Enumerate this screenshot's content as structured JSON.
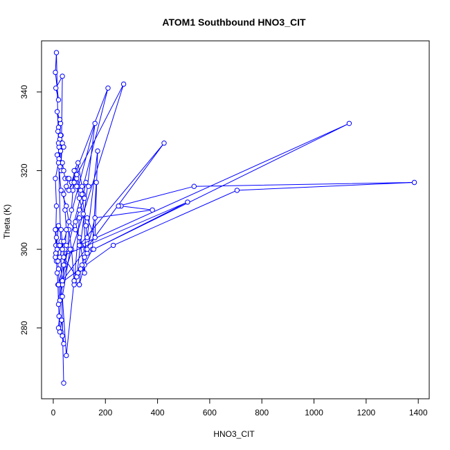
{
  "chart_data": {
    "type": "line",
    "title": "ATOM1 Southbound HNO3_CIT",
    "xlabel": "HNO3_CIT",
    "ylabel": "Theta (K)",
    "xlim": [
      -45,
      1442
    ],
    "ylim": [
      262,
      353
    ],
    "xticks": [
      0,
      200,
      400,
      600,
      800,
      1000,
      1200,
      1400
    ],
    "yticks": [
      280,
      300,
      320,
      340
    ],
    "grid": false,
    "line_color": "#0000ff",
    "marker": "open-circle",
    "series": [
      {
        "points": [
          [
            40,
            266
          ],
          [
            12,
            350
          ],
          [
            8,
            345
          ],
          [
            20,
            338
          ],
          [
            10,
            341
          ],
          [
            35,
            344
          ],
          [
            30,
            320
          ],
          [
            22,
            326
          ],
          [
            28,
            332
          ],
          [
            15,
            335
          ],
          [
            25,
            328
          ],
          [
            20,
            331
          ],
          [
            30,
            329
          ],
          [
            18,
            330
          ],
          [
            25,
            333
          ],
          [
            20,
            327
          ],
          [
            28,
            325
          ],
          [
            15,
            324
          ],
          [
            22,
            323
          ],
          [
            30,
            322
          ],
          [
            35,
            327
          ],
          [
            40,
            326
          ],
          [
            28,
            329
          ],
          [
            26,
            321
          ],
          [
            35,
            322
          ],
          [
            40,
            320
          ],
          [
            45,
            318
          ],
          [
            55,
            318
          ],
          [
            70,
            317
          ],
          [
            85,
            320
          ],
          [
            90,
            318
          ],
          [
            95,
            316
          ],
          [
            105,
            315
          ],
          [
            115,
            314
          ],
          [
            125,
            317
          ],
          [
            135,
            316
          ],
          [
            165,
            317
          ],
          [
            150,
            300
          ],
          [
            120,
            296
          ],
          [
            100,
            291
          ],
          [
            80,
            292
          ],
          [
            70,
            300
          ],
          [
            60,
            305
          ],
          [
            55,
            300
          ],
          [
            45,
            296
          ],
          [
            30,
            291
          ],
          [
            25,
            287
          ],
          [
            20,
            295
          ],
          [
            15,
            298
          ],
          [
            10,
            305
          ],
          [
            12,
            311
          ],
          [
            8,
            318
          ],
          [
            20,
            322
          ],
          [
            30,
            315
          ],
          [
            50,
            311
          ],
          [
            60,
            307
          ],
          [
            85,
            305
          ],
          [
            100,
            303
          ],
          [
            130,
            299
          ],
          [
            120,
            298
          ],
          [
            110,
            296
          ],
          [
            95,
            294
          ],
          [
            80,
            291
          ],
          [
            100,
            308
          ],
          [
            130,
            308
          ],
          [
            160,
            303
          ],
          [
            170,
            325
          ],
          [
            130,
            303
          ],
          [
            125,
            306
          ],
          [
            110,
            314
          ],
          [
            90,
            319
          ],
          [
            80,
            317
          ],
          [
            75,
            315
          ],
          [
            70,
            310
          ],
          [
            80,
            320
          ],
          [
            95,
            322
          ],
          [
            110,
            316
          ],
          [
            120,
            313
          ],
          [
            100,
            310
          ],
          [
            85,
            307
          ],
          [
            105,
            301
          ],
          [
            120,
            294
          ],
          [
            125,
            300
          ],
          [
            115,
            309
          ],
          [
            100,
            313
          ],
          [
            90,
            316
          ],
          [
            60,
            318
          ],
          [
            50,
            316
          ],
          [
            40,
            314
          ],
          [
            45,
            310
          ],
          [
            50,
            305
          ],
          [
            45,
            300
          ],
          [
            40,
            296
          ],
          [
            35,
            291
          ],
          [
            30,
            288
          ],
          [
            20,
            280
          ],
          [
            30,
            279
          ],
          [
            35,
            278
          ],
          [
            40,
            276
          ],
          [
            32,
            282
          ],
          [
            25,
            279
          ],
          [
            22,
            283
          ],
          [
            20,
            286
          ],
          [
            18,
            291
          ],
          [
            15,
            294
          ],
          [
            12,
            297
          ],
          [
            10,
            299
          ],
          [
            8,
            298
          ],
          [
            10,
            301
          ],
          [
            12,
            303
          ],
          [
            15,
            300
          ],
          [
            18,
            297
          ],
          [
            20,
            301
          ],
          [
            25,
            301
          ],
          [
            30,
            302
          ],
          [
            35,
            300
          ],
          [
            40,
            302
          ],
          [
            50,
            301
          ],
          [
            65,
            300
          ],
          [
            35,
            288
          ],
          [
            50,
            273
          ],
          [
            80,
            292
          ],
          [
            100,
            291
          ],
          [
            105,
            295
          ],
          [
            130,
            300
          ],
          [
            160,
            308
          ],
          [
            380,
            310
          ],
          [
            260,
            311
          ],
          [
            250,
            311
          ],
          [
            540,
            316
          ],
          [
            1385,
            317
          ],
          [
            705,
            315
          ],
          [
            230,
            301
          ],
          [
            20,
            291
          ],
          [
            210,
            341
          ],
          [
            60,
            315
          ],
          [
            270,
            342
          ],
          [
            35,
            292
          ],
          [
            425,
            327
          ],
          [
            100,
            301
          ],
          [
            1135,
            332
          ],
          [
            155,
            300
          ],
          [
            515,
            312
          ],
          [
            25,
            298
          ],
          [
            160,
            332
          ],
          [
            90,
            293
          ],
          [
            40,
            298
          ],
          [
            30,
            305
          ],
          [
            20,
            306
          ],
          [
            10,
            299
          ],
          [
            8,
            305
          ]
        ]
      }
    ]
  }
}
